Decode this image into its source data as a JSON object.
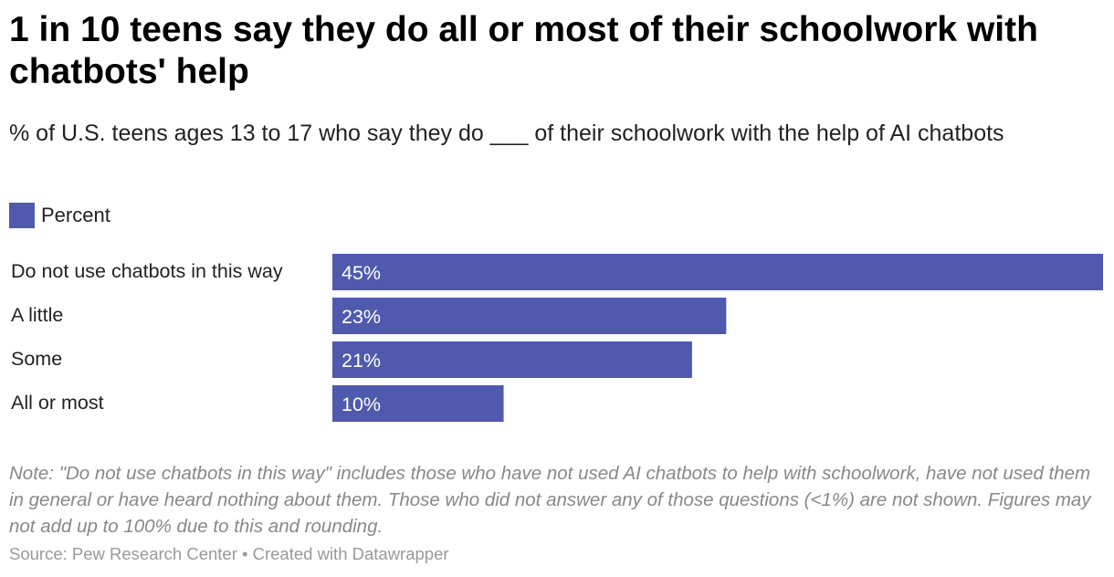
{
  "title": "1 in 10 teens say they do all or most of their schoolwork with chatbots' help",
  "subtitle": "% of U.S. teens ages 13 to 17 who say they do ___ of their schoolwork with the help of AI chatbots",
  "note": "Note: \"Do not use chatbots in this way\" includes those who have not used AI chatbots to help with schoolwork, have not used them in general or have heard nothing about them. Those who did not answer any of those questions (<1%) are not shown. Figures may not add up to 100% due to this and rounding.",
  "source": "Source: Pew Research Center • Created with Datawrapper",
  "chart_data": {
    "type": "bar",
    "orientation": "horizontal",
    "categories": [
      "Do not use chatbots in this way",
      "A little",
      "Some",
      "All or most"
    ],
    "series": [
      {
        "name": "Percent",
        "values": [
          45,
          23,
          21,
          10
        ],
        "color": "#4f5aae"
      }
    ],
    "data_labels": [
      "45%",
      "23%",
      "21%",
      "10%"
    ],
    "xlim": [
      0,
      45
    ],
    "grid": false,
    "legend": "top-left"
  }
}
